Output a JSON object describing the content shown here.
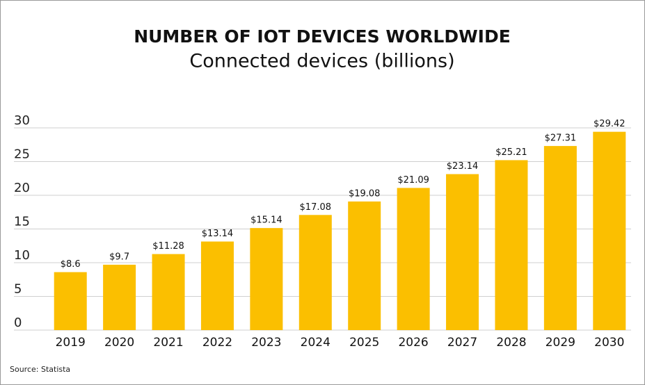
{
  "chart_data": {
    "type": "bar",
    "title": "NUMBER OF IOT DEVICES WORLDWIDE",
    "subtitle": "Connected devices (billions)",
    "source": "Source: Statista",
    "categories": [
      "2019",
      "2020",
      "2021",
      "2022",
      "2023",
      "2024",
      "2025",
      "2026",
      "2027",
      "2028",
      "2029",
      "2030"
    ],
    "values": [
      8.6,
      9.7,
      11.28,
      13.14,
      15.14,
      17.08,
      19.08,
      21.09,
      23.14,
      25.21,
      27.31,
      29.42
    ],
    "value_labels": [
      "$8.6",
      "$9.7",
      "$11.28",
      "$13.14",
      "$15.14",
      "$17.08",
      "$19.08",
      "$21.09",
      "$23.14",
      "$25.21",
      "$27.31",
      "$29.42"
    ],
    "color": "#fbbf00",
    "ylim": [
      0,
      30
    ],
    "yticks": [
      0,
      5,
      10,
      15,
      20,
      25,
      30
    ],
    "grid": true
  }
}
